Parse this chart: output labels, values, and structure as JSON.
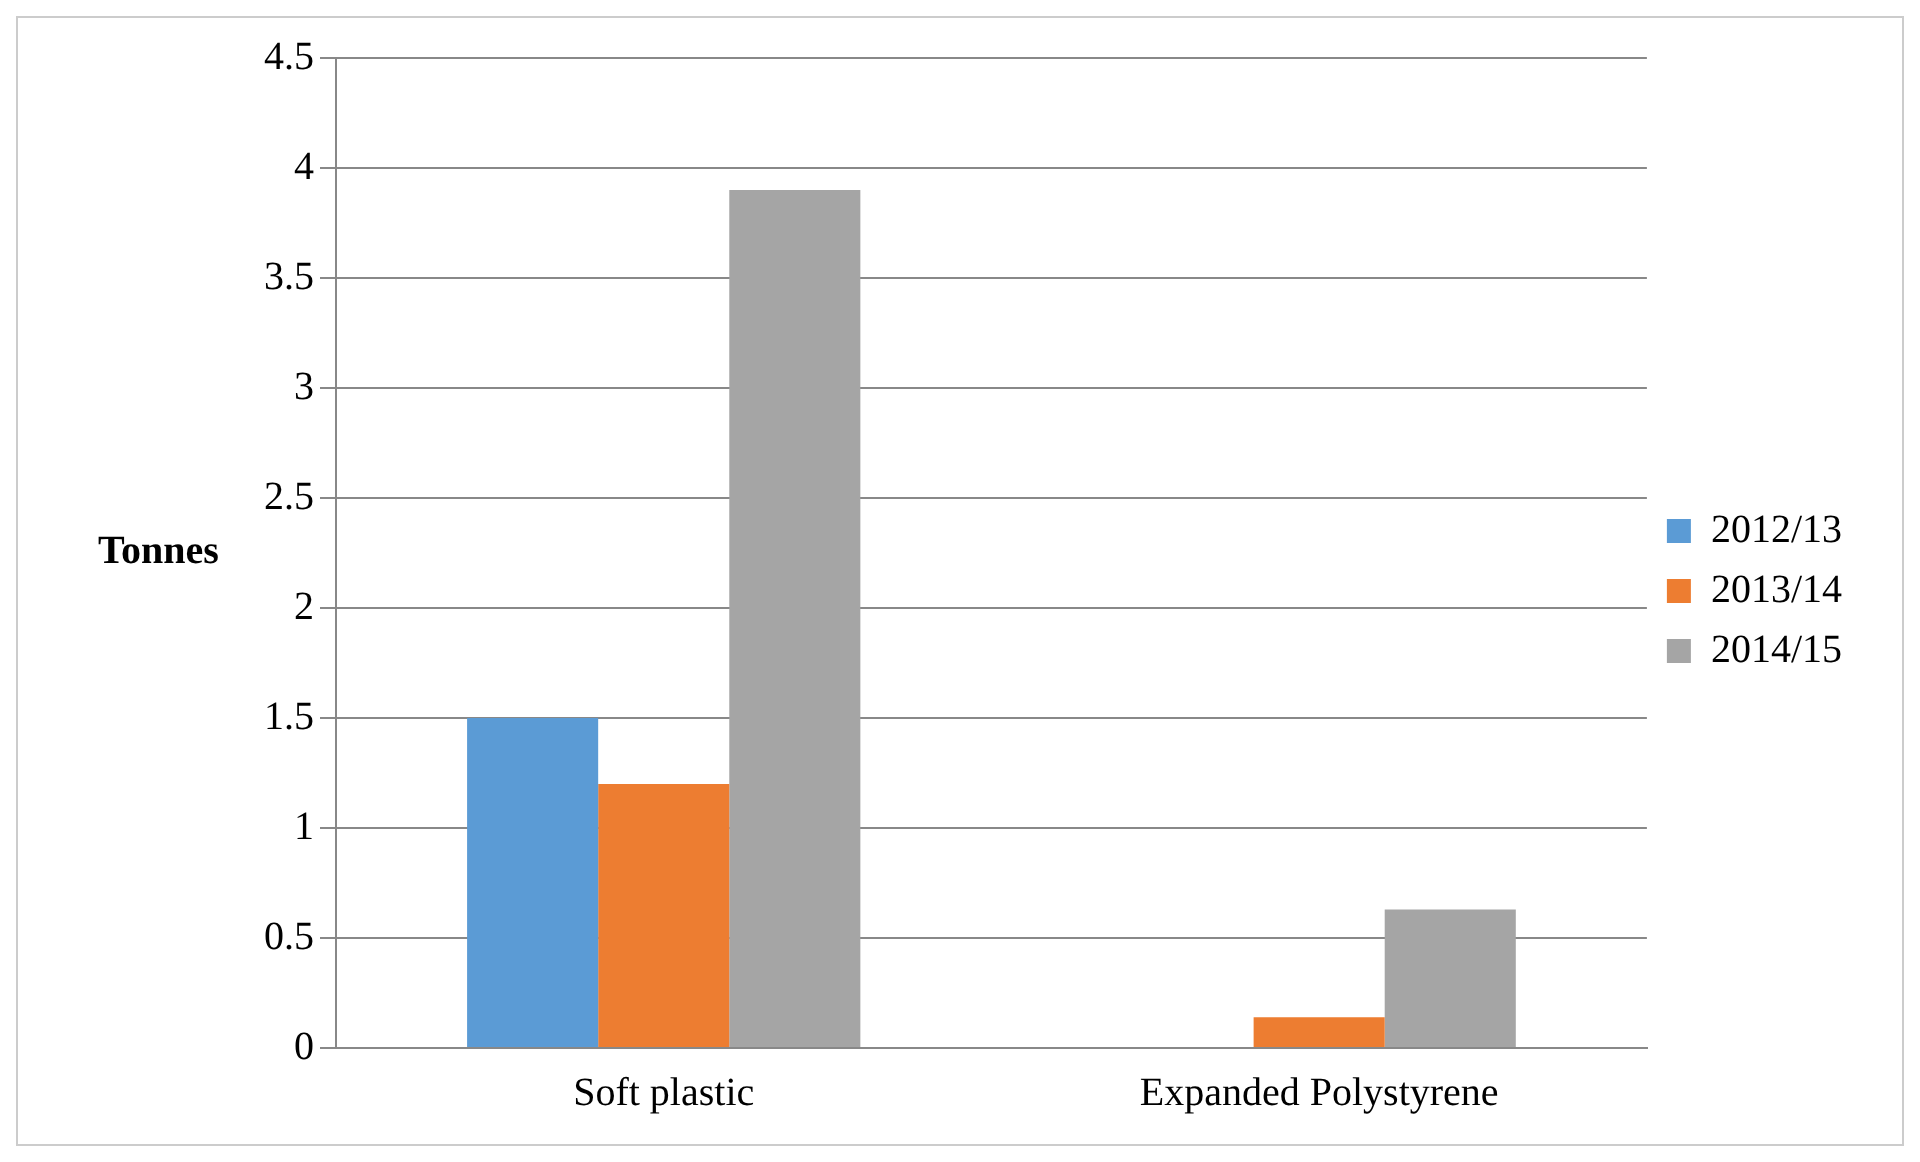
{
  "chart_data": {
    "type": "bar",
    "ylabel": "Tonnes",
    "categories": [
      "Soft plastic",
      "Expanded Polystyrene"
    ],
    "series": [
      {
        "name": "2012/13",
        "color": "#5b9bd5",
        "values": [
          1.5,
          0
        ]
      },
      {
        "name": "2013/14",
        "color": "#ed7d31",
        "values": [
          1.2,
          0.14
        ]
      },
      {
        "name": "2014/15",
        "color": "#a5a5a5",
        "values": [
          3.9,
          0.63
        ]
      }
    ],
    "ylim": [
      0,
      4.5
    ],
    "yticks": [
      0,
      0.5,
      1,
      1.5,
      2,
      2.5,
      3,
      3.5,
      4,
      4.5
    ],
    "grid": "y",
    "legend": "right"
  }
}
